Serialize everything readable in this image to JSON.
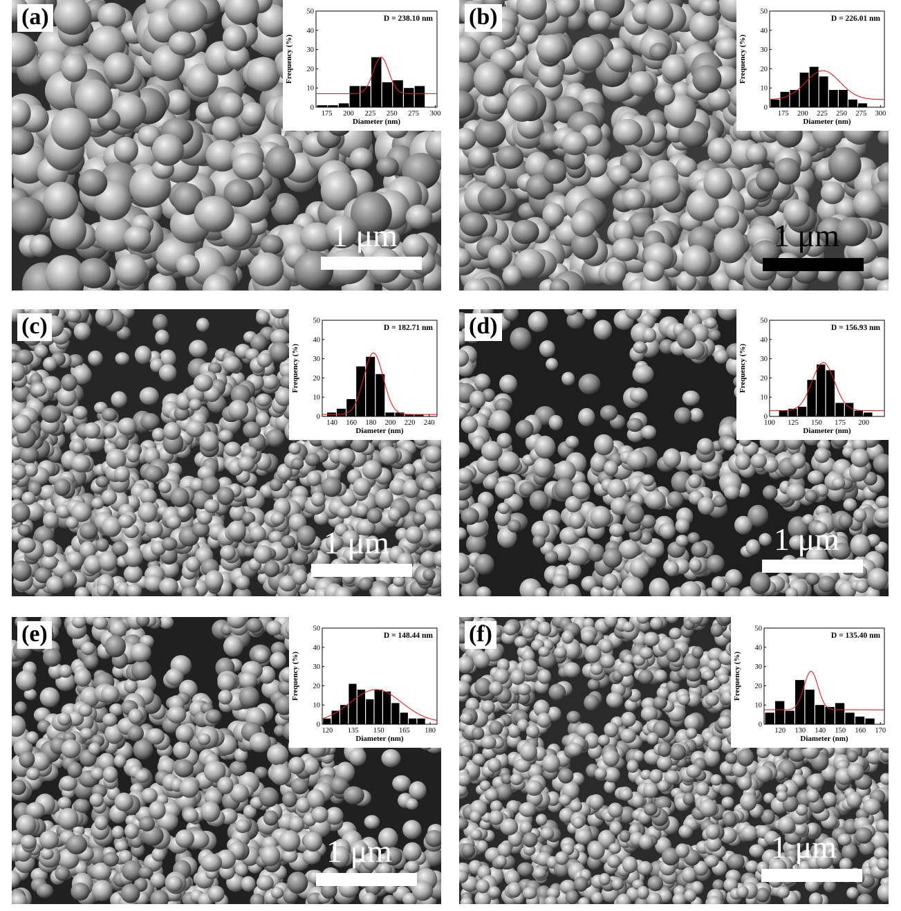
{
  "colors": {
    "bar": "#000000",
    "fit": "#e02020",
    "bg": "#ffffff"
  },
  "panels": [
    {
      "label": "(a)",
      "scale_text": "1 μm",
      "scale_style": "light",
      "chart": {
        "annotation": "D = 238.10 nm",
        "ylabel": "Frequency (%)",
        "xlabel": "Diameter (nm)",
        "ylim": [
          0,
          50
        ],
        "yticks": [
          0,
          10,
          20,
          30,
          40,
          50
        ],
        "xlim": [
          162.5,
          302
        ],
        "xticks": [
          175,
          200,
          225,
          250,
          275,
          300
        ],
        "bin": 12.5,
        "bins": [
          170,
          182.5,
          195,
          207.5,
          220,
          232.5,
          245,
          257.5,
          270,
          282.5,
          295
        ],
        "values": [
          1,
          1,
          2,
          11,
          11,
          26,
          13,
          14,
          10,
          11,
          0
        ],
        "fit": {
          "mu": 237.5,
          "sigma": 9,
          "amp": 19,
          "base": 7
        }
      }
    },
    {
      "label": "(b)",
      "scale_text": "1 μm",
      "scale_style": "dark",
      "chart": {
        "annotation": "D = 226.01 nm",
        "ylabel": "Frequency (%)",
        "xlabel": "Diameter (nm)",
        "ylim": [
          0,
          50
        ],
        "yticks": [
          0,
          10,
          20,
          30,
          40,
          50
        ],
        "xlim": [
          157.5,
          305
        ],
        "xticks": [
          175,
          200,
          225,
          250,
          275,
          300
        ],
        "bin": 12.5,
        "bins": [
          165,
          177.5,
          190,
          202.5,
          215,
          227.5,
          240,
          252.5,
          265,
          277.5,
          290,
          302.5
        ],
        "values": [
          4,
          8,
          9,
          18,
          21,
          16,
          9,
          9,
          4,
          2,
          0,
          0
        ],
        "fit": {
          "mu": 226,
          "sigma": 22,
          "amp": 15,
          "base": 4
        }
      }
    },
    {
      "label": "(c)",
      "scale_text": "1 μm",
      "scale_style": "light",
      "chart": {
        "annotation": "D = 182.71 nm",
        "ylabel": "Frequency (%)",
        "xlabel": "Diameter (nm)",
        "ylim": [
          0,
          50
        ],
        "yticks": [
          0,
          10,
          20,
          30,
          40,
          50
        ],
        "xlim": [
          130,
          248
        ],
        "xticks": [
          140,
          160,
          180,
          200,
          220,
          240
        ],
        "bin": 10,
        "bins": [
          140,
          150,
          160,
          170,
          180,
          190,
          200,
          210,
          220,
          230,
          240
        ],
        "values": [
          2,
          4,
          9,
          26,
          31,
          22,
          2,
          2,
          1,
          1,
          0
        ],
        "fit": {
          "mu": 182.7,
          "sigma": 10,
          "amp": 32,
          "base": 1
        }
      }
    },
    {
      "label": "(d)",
      "scale_text": "1 μm",
      "scale_style": "light",
      "chart": {
        "annotation": "D = 156.93 nm",
        "ylabel": "Frequency (%)",
        "xlabel": "Diameter (nm)",
        "ylim": [
          0,
          50
        ],
        "yticks": [
          0,
          10,
          20,
          30,
          40,
          50
        ],
        "xlim": [
          100,
          222
        ],
        "xticks": [
          100,
          125,
          150,
          175,
          200
        ],
        "bin": 10,
        "bins": [
          115,
          125,
          135,
          145,
          155,
          165,
          175,
          185,
          195,
          205,
          215
        ],
        "values": [
          3,
          4,
          5,
          19,
          27,
          24,
          7,
          7,
          3,
          2,
          0
        ],
        "fit": {
          "mu": 157,
          "sigma": 12,
          "amp": 25,
          "base": 3
        }
      }
    },
    {
      "label": "(e)",
      "scale_text": "1 μm",
      "scale_style": "light",
      "chart": {
        "annotation": "D = 148.44 nm",
        "ylabel": "Frequency (%)",
        "xlabel": "Diameter (nm)",
        "ylim": [
          0,
          50
        ],
        "yticks": [
          0,
          10,
          20,
          30,
          40,
          50
        ],
        "xlim": [
          117,
          184
        ],
        "xticks": [
          120,
          135,
          150,
          165,
          180
        ],
        "bin": 5,
        "bins": [
          120,
          125,
          130,
          135,
          140,
          145,
          150,
          155,
          160,
          165,
          170,
          175,
          180
        ],
        "values": [
          3,
          7,
          10,
          21,
          18,
          13,
          18,
          17,
          11,
          6,
          3,
          3,
          0
        ],
        "fit": {
          "mu": 148.4,
          "sigma": 15,
          "amp": 17,
          "base": 1
        }
      }
    },
    {
      "label": "(f)",
      "scale_text": "1 μm",
      "scale_style": "light",
      "chart": {
        "annotation": "D = 135.40 nm",
        "ylabel": "Frequency (%)",
        "xlabel": "Diameter (nm)",
        "ylim": [
          0,
          50
        ],
        "yticks": [
          0,
          10,
          20,
          30,
          40,
          50
        ],
        "xlim": [
          112,
          172
        ],
        "xticks": [
          120,
          130,
          140,
          150,
          160,
          170
        ],
        "bin": 5,
        "bins": [
          115,
          120,
          125,
          130,
          135,
          140,
          145,
          150,
          155,
          160,
          165,
          170
        ],
        "values": [
          6,
          12,
          7,
          23,
          18,
          10,
          9,
          11,
          6,
          4,
          3,
          0
        ],
        "fit": {
          "mu": 135.4,
          "sigma": 3.5,
          "amp": 20,
          "base": 7.5
        }
      }
    }
  ]
}
